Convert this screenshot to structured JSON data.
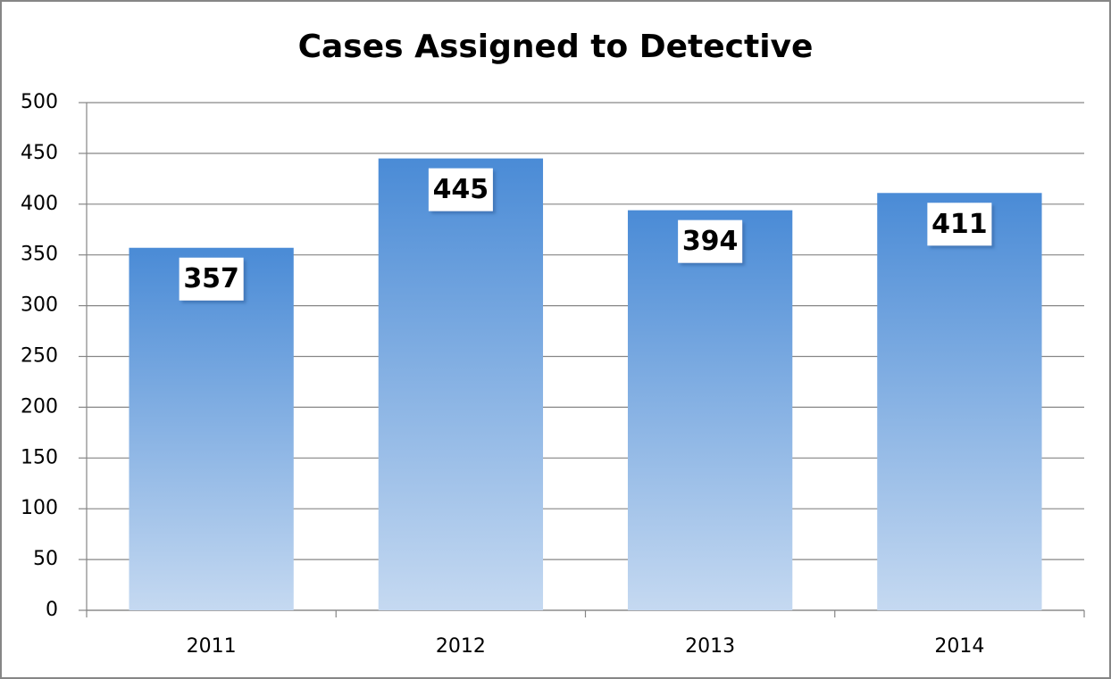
{
  "chart_data": {
    "type": "bar",
    "title": "Cases Assigned to Detective",
    "categories": [
      "2011",
      "2012",
      "2013",
      "2014"
    ],
    "values": [
      357,
      445,
      394,
      411
    ],
    "color": "#4a8bd6",
    "ylim": [
      0,
      500
    ],
    "yticks": [
      0,
      50,
      100,
      150,
      200,
      250,
      300,
      350,
      400,
      450,
      500
    ],
    "grid": true
  }
}
